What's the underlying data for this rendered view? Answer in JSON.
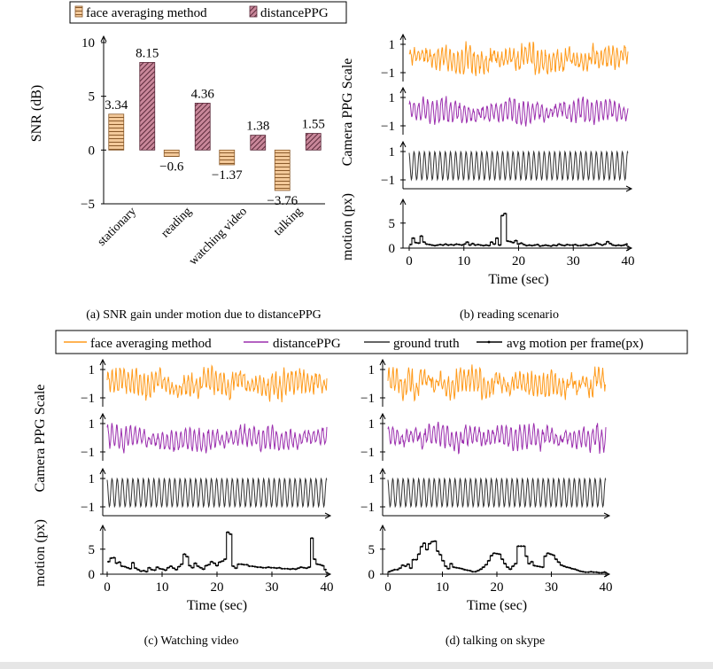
{
  "colors": {
    "face": "#ff9a1a",
    "distance": "#9b2fae",
    "truth": "#333333",
    "motion": "#000000",
    "bar_face_fill": "#f3c99a",
    "bar_face_stripe": "#8a5a2b",
    "bar_dist_fill": "#c9879a",
    "bar_dist_stripe": "#5a2a3a"
  },
  "legend_a": [
    "face averaging method",
    "distancePPG"
  ],
  "legend_main": [
    "face averaging method",
    "distancePPG",
    "ground truth",
    "avg motion per frame(px)"
  ],
  "captions": {
    "a": "(a) SNR gain under motion due to distancePPG",
    "b": "(b) reading scenario",
    "c": "(c) Watching video",
    "d": "(d) talking on skype"
  },
  "chart_data": [
    {
      "type": "bar",
      "categories": [
        "stationary",
        "reading",
        "watching video",
        "talking"
      ],
      "series": [
        {
          "name": "face averaging method",
          "values": [
            3.34,
            -0.6,
            -1.37,
            -3.76
          ]
        },
        {
          "name": "distancePPG",
          "values": [
            8.15,
            4.36,
            1.38,
            1.55
          ]
        }
      ],
      "data_labels": [
        [
          "3.34",
          "−0.6",
          "−1.37",
          "−3.76"
        ],
        [
          "8.15",
          "4.36",
          "1.38",
          "1.55"
        ]
      ],
      "ylabel": "SNR (dB)",
      "ylim": [
        -5,
        10
      ],
      "yticks": [
        "−5",
        "0",
        "5",
        "10"
      ]
    },
    {
      "type": "line",
      "panel": "b",
      "ylabel": "Camera PPG Scale",
      "yticks": [
        "1",
        "−1"
      ],
      "series_names": [
        "face averaging method",
        "distancePPG",
        "ground truth"
      ],
      "motion": {
        "ylabel": "motion (px)",
        "yticks": [
          "0",
          "5"
        ],
        "values": [
          0.7,
          2.0,
          1.1,
          1.0,
          2.4,
          1.2,
          0.8,
          0.7,
          0.6,
          0.5,
          0.6,
          0.7,
          0.6,
          0.8,
          0.6,
          0.7,
          0.6,
          0.8,
          0.7,
          0.6,
          0.8,
          1.2,
          0.6,
          0.9,
          0.6,
          0.7,
          0.6,
          0.5,
          0.6,
          0.5,
          1.2,
          0.8,
          2.0,
          0.6,
          6.5,
          6.9,
          1.4,
          1.3,
          1.1,
          1.5,
          0.8,
          1.0,
          0.7,
          0.5,
          0.6,
          0.5,
          0.6,
          0.7,
          0.4,
          0.5,
          0.6,
          0.5,
          0.4,
          0.6,
          0.5,
          0.8,
          0.6,
          0.5,
          0.7,
          0.6,
          0.6,
          0.7,
          0.5,
          0.5,
          0.6,
          0.7,
          0.5,
          0.6,
          0.7,
          1.0,
          0.8,
          0.6,
          0.8,
          1.3,
          0.9,
          0.6,
          0.5,
          0.6,
          0.5,
          0.6,
          0.8
        ]
      },
      "xlabel": "Time (sec)",
      "xticks": [
        "0",
        "10",
        "20",
        "30",
        "40"
      ],
      "xlim": [
        0,
        40
      ]
    },
    {
      "type": "line",
      "panel": "c",
      "ylabel": "Camera PPG Scale",
      "yticks": [
        "1",
        "−1"
      ],
      "series_names": [
        "face averaging method",
        "distancePPG",
        "ground truth"
      ],
      "motion": {
        "ylabel": "motion (px)",
        "yticks": [
          "0",
          "5"
        ],
        "values": [
          2.5,
          3.2,
          3.3,
          2.2,
          2.4,
          1.6,
          1.5,
          1.3,
          1.1,
          2.3,
          1.2,
          0.9,
          0.6,
          0.7,
          0.5,
          1.3,
          0.9,
          0.8,
          1.4,
          1.1,
          1.0,
          0.8,
          1.3,
          1.6,
          1.2,
          0.9,
          1.5,
          2.0,
          4.0,
          3.5,
          1.7,
          1.3,
          2.2,
          1.6,
          1.3,
          1.0,
          1.7,
          1.9,
          2.5,
          2.2,
          1.7,
          2.4,
          2.6,
          3.0,
          8.4,
          8.0,
          1.6,
          1.2,
          2.0,
          2.0,
          1.9,
          1.9,
          1.6,
          1.6,
          1.5,
          1.4,
          1.4,
          1.3,
          1.3,
          1.4,
          1.3,
          1.3,
          1.2,
          1.3,
          1.1,
          1.1,
          1.1,
          1.0,
          1.1,
          1.0,
          1.2,
          1.4,
          1.3,
          1.2,
          1.4,
          7.2,
          3.0,
          2.0,
          1.9,
          1.7,
          0.9
        ]
      },
      "xlabel": "Time (sec)",
      "xticks": [
        "0",
        "10",
        "20",
        "30",
        "40"
      ],
      "xlim": [
        0,
        40
      ]
    },
    {
      "type": "line",
      "panel": "d",
      "yticks": [
        "1",
        "−1"
      ],
      "series_names": [
        "face averaging method",
        "distancePPG",
        "ground truth"
      ],
      "motion": {
        "yticks": [
          "0",
          "5"
        ],
        "values": [
          0.5,
          0.7,
          0.9,
          0.9,
          1.2,
          1.8,
          1.6,
          2.0,
          1.2,
          2.9,
          2.9,
          4.0,
          5.5,
          6.2,
          4.9,
          6.1,
          6.5,
          6.6,
          4.6,
          3.9,
          2.7,
          1.6,
          1.1,
          2.1,
          1.4,
          1.3,
          1.2,
          1.1,
          0.9,
          0.8,
          0.7,
          0.5,
          0.5,
          0.7,
          1.0,
          1.4,
          1.9,
          2.7,
          3.7,
          4.2,
          4.1,
          4.0,
          3.0,
          2.1,
          1.4,
          1.0,
          1.6,
          2.1,
          5.6,
          5.6,
          5.6,
          3.6,
          2.1,
          2.5,
          1.7,
          1.6,
          1.5,
          1.4,
          3.6,
          4.2,
          4.0,
          3.8,
          3.0,
          2.4,
          1.8,
          1.6,
          1.4,
          1.3,
          1.1,
          1.0,
          0.8,
          0.6,
          0.5,
          0.4,
          0.4,
          0.5,
          0.4,
          0.4,
          0.3,
          0.3,
          0.4
        ]
      },
      "xlabel": "Time (sec)",
      "xticks": [
        "0",
        "10",
        "20",
        "30",
        "40"
      ],
      "xlim": [
        0,
        40
      ]
    }
  ]
}
